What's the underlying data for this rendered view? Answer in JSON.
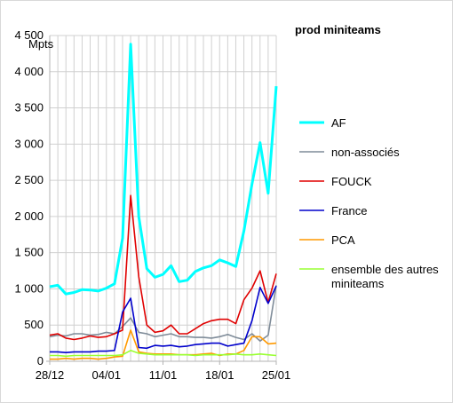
{
  "chart_data": {
    "type": "line",
    "title": "prod miniteams",
    "ylabel": "Mpts",
    "xlabel": "",
    "ylim": [
      0,
      4500
    ],
    "grid": true,
    "legend_position": "right",
    "x_tick_labels": [
      "28/12",
      "04/01",
      "11/01",
      "18/01",
      "25/01"
    ],
    "y_tick_labels": [
      "0",
      "500",
      "1 000",
      "1 500",
      "2 000",
      "2 500",
      "3 000",
      "3 500",
      "4 000",
      "4 500"
    ],
    "series": [
      {
        "name": "AF",
        "color": "#00ffff",
        "values": [
          1030,
          1050,
          930,
          950,
          990,
          985,
          970,
          1010,
          1070,
          1700,
          4380,
          2000,
          1280,
          1160,
          1200,
          1320,
          1100,
          1120,
          1240,
          1290,
          1320,
          1400,
          1360,
          1310,
          1800,
          2450,
          3020,
          2320,
          3800
        ]
      },
      {
        "name": "non-associés",
        "color": "#7f8c99",
        "values": [
          340,
          360,
          350,
          380,
          380,
          360,
          370,
          400,
          380,
          480,
          600,
          400,
          380,
          340,
          360,
          380,
          340,
          340,
          330,
          330,
          320,
          340,
          370,
          330,
          300,
          380,
          280,
          360,
          1050
        ]
      },
      {
        "name": "FOUCK",
        "color": "#e00000",
        "values": [
          360,
          380,
          320,
          300,
          320,
          350,
          330,
          340,
          380,
          430,
          2290,
          1170,
          500,
          400,
          420,
          500,
          380,
          380,
          450,
          520,
          560,
          580,
          580,
          520,
          850,
          1010,
          1250,
          810,
          1210
        ]
      },
      {
        "name": "France",
        "color": "#0000cc",
        "values": [
          130,
          130,
          120,
          130,
          130,
          130,
          140,
          140,
          150,
          680,
          870,
          190,
          180,
          220,
          210,
          220,
          200,
          210,
          230,
          240,
          250,
          250,
          210,
          230,
          250,
          560,
          1020,
          800,
          1040
        ]
      },
      {
        "name": "PCA",
        "color": "#ff9900",
        "values": [
          30,
          30,
          40,
          30,
          40,
          40,
          30,
          40,
          60,
          70,
          430,
          130,
          110,
          100,
          100,
          100,
          90,
          90,
          90,
          100,
          110,
          80,
          100,
          100,
          150,
          340,
          340,
          240,
          250
        ]
      },
      {
        "name": "ensemble des autres miniteams",
        "color": "#99ff33",
        "values": [
          80,
          80,
          70,
          80,
          80,
          80,
          80,
          80,
          80,
          90,
          150,
          110,
          100,
          90,
          90,
          90,
          90,
          90,
          80,
          90,
          90,
          90,
          90,
          100,
          90,
          90,
          100,
          90,
          80
        ]
      }
    ]
  }
}
